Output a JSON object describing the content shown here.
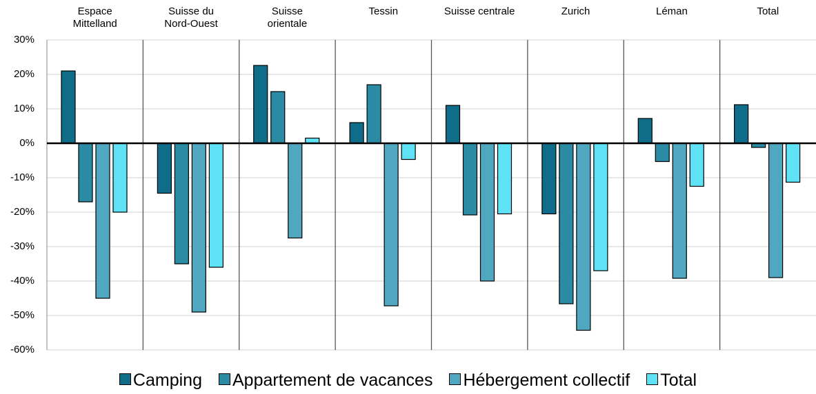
{
  "chart_data": {
    "type": "bar",
    "categories": [
      "Espace Mittelland",
      "Suisse du Nord-Ouest",
      "Suisse orientale",
      "Tessin",
      "Suisse centrale",
      "Zurich",
      "Léman",
      "Total"
    ],
    "series": [
      {
        "name": "Camping",
        "color": "#0f6d8a",
        "values": [
          21,
          -14.5,
          22.6,
          6,
          11,
          -20.5,
          7.2,
          11.2
        ]
      },
      {
        "name": "Appartement de vacances",
        "color": "#2b8aa4",
        "values": [
          -17,
          -35,
          15,
          17,
          -20.8,
          -46.6,
          -5.3,
          -1.2
        ]
      },
      {
        "name": "Hébergement collectif",
        "color": "#4fa8c0",
        "values": [
          -45,
          -49,
          -27.5,
          -47.2,
          -40,
          -54.3,
          -39.2,
          -39
        ]
      },
      {
        "name": "Total",
        "color": "#5fe1f6",
        "values": [
          -20,
          -36,
          1.5,
          -4.7,
          -20.5,
          -37,
          -12.5,
          -11.3
        ]
      }
    ],
    "ylim": [
      -60,
      30
    ],
    "yticks": [
      {
        "value": -60,
        "label": "-60%"
      },
      {
        "value": -50,
        "label": "-50%"
      },
      {
        "value": -40,
        "label": "-40%"
      },
      {
        "value": -30,
        "label": "-30%"
      },
      {
        "value": -20,
        "label": "-20%"
      },
      {
        "value": -10,
        "label": "-10%"
      },
      {
        "value": 0,
        "label": "0%"
      },
      {
        "value": 10,
        "label": "10%"
      },
      {
        "value": 20,
        "label": "20%"
      },
      {
        "value": 30,
        "label": "30%"
      }
    ],
    "grid": true,
    "legend": "bottom"
  }
}
